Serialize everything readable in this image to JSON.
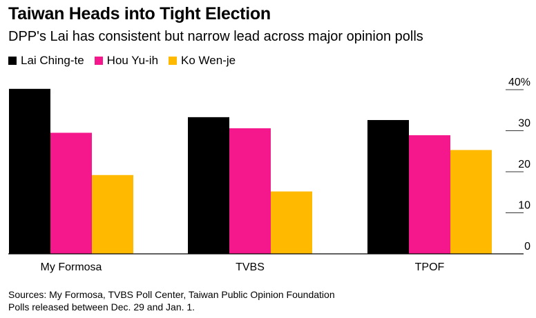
{
  "chart_data": {
    "type": "bar",
    "title": "Taiwan Heads into Tight Election",
    "subtitle": "DPP's Lai has consistent but narrow lead across major opinion polls",
    "categories": [
      "My Formosa",
      "TVBS",
      "TPOF"
    ],
    "series": [
      {
        "name": "Lai Ching-te",
        "color": "#000000",
        "values": [
          40.2,
          33.3,
          32.6
        ]
      },
      {
        "name": "Hou Yu-ih",
        "color": "#f5178c",
        "values": [
          29.5,
          30.6,
          28.9
        ]
      },
      {
        "name": "Ko Wen-je",
        "color": "#ffba00",
        "values": [
          19.2,
          15.2,
          25.3
        ]
      }
    ],
    "ylim": [
      0,
      40
    ],
    "yticks": [
      0,
      10,
      20,
      30,
      40
    ],
    "ytick_labels": [
      "0",
      "10",
      "20",
      "30",
      "40%"
    ],
    "y_axis_position": "right",
    "legend_position": "top-left",
    "xlabel": "",
    "ylabel": ""
  },
  "footnotes": {
    "sources": "Sources: My Formosa, TVBS Poll Center, Taiwan Public Opinion Foundation",
    "note": "Polls released between Dec. 29 and Jan. 1."
  }
}
